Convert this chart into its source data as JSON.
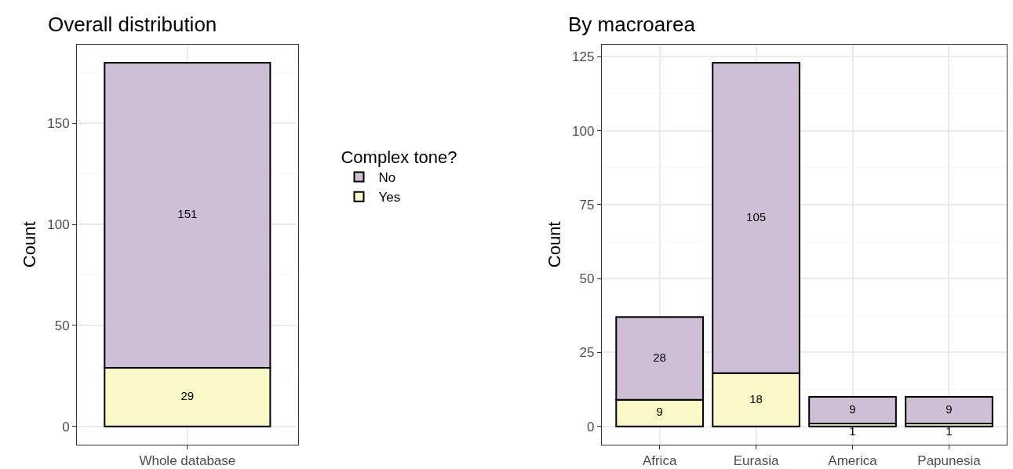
{
  "chart_data": [
    {
      "type": "bar",
      "title": "Overall distribution",
      "ylabel": "Count",
      "categories": [
        "Whole database"
      ],
      "stacked": true,
      "legend": "right",
      "legend_title": "Complex tone?",
      "data_labels": true,
      "grid": true,
      "ylim": [
        -9,
        189
      ],
      "yticks": [
        0,
        50,
        100,
        150
      ],
      "series": [
        {
          "name": "Yes",
          "color": "#fbf8c8",
          "values": [
            29
          ]
        },
        {
          "name": "No",
          "color": "#cfbfd6",
          "values": [
            151
          ]
        }
      ]
    },
    {
      "type": "bar",
      "title": "By macroarea",
      "ylabel": "Count",
      "categories": [
        "Africa",
        "Eurasia",
        "America",
        "Papunesia"
      ],
      "stacked": true,
      "data_labels": true,
      "grid": true,
      "ylim": [
        -6.15,
        129.15
      ],
      "yticks": [
        0,
        25,
        50,
        75,
        100,
        125
      ],
      "series": [
        {
          "color": "#fbf8c8",
          "values": [
            9,
            18,
            1,
            1
          ]
        },
        {
          "color": "#cfbfd6",
          "values": [
            28,
            105,
            9,
            9
          ]
        }
      ]
    }
  ]
}
